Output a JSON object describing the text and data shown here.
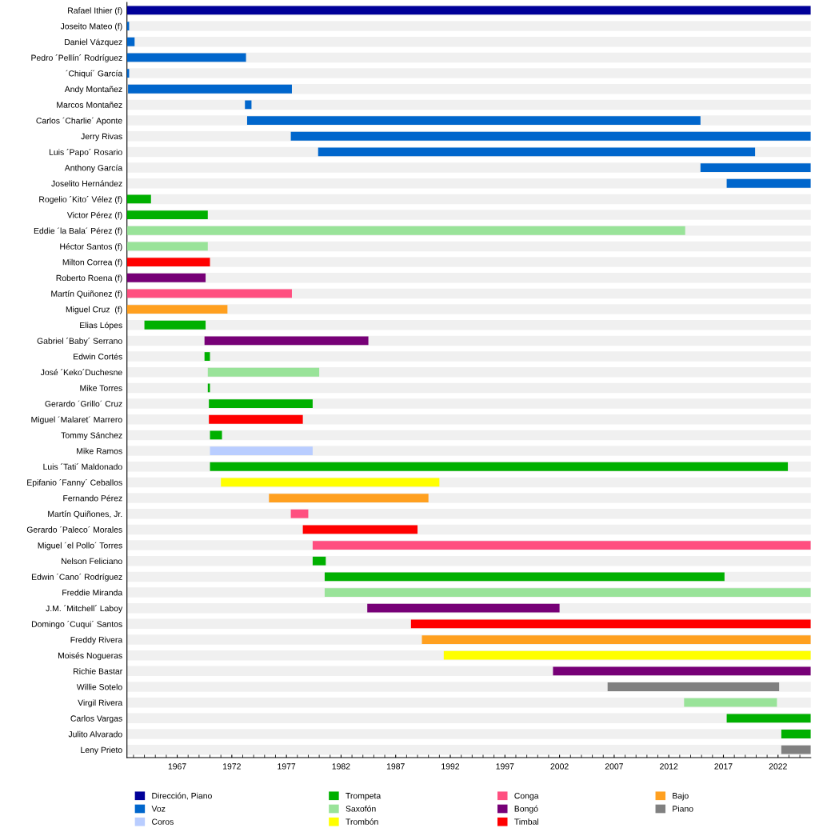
{
  "chart_data": {
    "type": "bar",
    "orientation": "horizontal",
    "legend": "bottom",
    "grid": "y",
    "categories": [
      "Rafael Ithier (f)",
      "Joseito Mateo (f)",
      "Daniel Vázquez",
      "Pedro ´Pellín´ Rodríguez",
      "´Chiquí´ García",
      "Andy Montañez",
      "Marcos Montañez",
      "Carlos ´Charlie´ Aponte",
      "Jerry Rivas",
      "Luis ´Papo´ Rosario",
      "Anthony García",
      "Joselito Hernández",
      "Rogelio ´Kito´ Vélez (f)",
      "Victor Pérez (f)",
      "Eddie ´la Bala´ Pérez (f)",
      "Héctor Santos (f)",
      "Milton Correa (f)",
      "Roberto Roena (f)",
      "Martín Quiñonez (f)",
      "Miguel Cruz  (f)",
      "Elias Lópes",
      "Gabriel ´Baby´ Serrano",
      "Edwin Cortés",
      "José ´Keko´Duchesne",
      "Mike Torres",
      "Gerardo ´Grillo´ Cruz",
      "Miguel ´Malaret´ Marrero",
      "Tommy Sánchez",
      "Mike Ramos",
      "Luis ´Tati´ Maldonado",
      "Epifanio ´Fanny´ Ceballos",
      "Fernando Pérez",
      "Martín Quiñones, Jr.",
      "Gerardo ´Paleco´ Morales",
      "Miguel ´el Pollo´ Torres",
      "Nelson Feliciano",
      "Edwin ´Cano´ Rodríguez",
      "Freddie Miranda",
      "J.M. ´Mitchell´ Laboy",
      "Domingo ´Cuqui´ Santos",
      "Freddy Rivera",
      "Moisés Nogueras",
      "Richie Bastar",
      "Willie Sotelo",
      "Virgil Rivera",
      "Carlos Vargas",
      "Julito Alvarado",
      "Leny Prieto"
    ],
    "xlim": [
      1962.4,
      2025.0
    ],
    "xticks": [
      {
        "value": 1963,
        "label": null
      },
      {
        "value": 1964,
        "label": null
      },
      {
        "value": 1965,
        "label": null
      },
      {
        "value": 1966,
        "label": null
      },
      1967,
      {
        "value": 1968,
        "label": null
      },
      {
        "value": 1969,
        "label": null
      },
      {
        "value": 1970,
        "label": null
      },
      {
        "value": 1971,
        "label": null
      },
      1972,
      {
        "value": 1973,
        "label": null
      },
      {
        "value": 1974,
        "label": null
      },
      {
        "value": 1975,
        "label": null
      },
      {
        "value": 1976,
        "label": null
      },
      1977,
      {
        "value": 1978,
        "label": null
      },
      {
        "value": 1979,
        "label": null
      },
      {
        "value": 1980,
        "label": null
      },
      {
        "value": 1981,
        "label": null
      },
      1982,
      {
        "value": 1983,
        "label": null
      },
      {
        "value": 1984,
        "label": null
      },
      {
        "value": 1985,
        "label": null
      },
      {
        "value": 1986,
        "label": null
      },
      1987,
      {
        "value": 1988,
        "label": null
      },
      {
        "value": 1989,
        "label": null
      },
      {
        "value": 1990,
        "label": null
      },
      {
        "value": 1991,
        "label": null
      },
      1992,
      {
        "value": 1993,
        "label": null
      },
      {
        "value": 1994,
        "label": null
      },
      {
        "value": 1995,
        "label": null
      },
      {
        "value": 1996,
        "label": null
      },
      1997,
      {
        "value": 1998,
        "label": null
      },
      {
        "value": 1999,
        "label": null
      },
      {
        "value": 2000,
        "label": null
      },
      {
        "value": 2001,
        "label": null
      },
      2002,
      {
        "value": 2003,
        "label": null
      },
      {
        "value": 2004,
        "label": null
      },
      {
        "value": 2005,
        "label": null
      },
      {
        "value": 2006,
        "label": null
      },
      2007,
      {
        "value": 2008,
        "label": null
      },
      {
        "value": 2009,
        "label": null
      },
      {
        "value": 2010,
        "label": null
      },
      {
        "value": 2011,
        "label": null
      },
      2012,
      {
        "value": 2013,
        "label": null
      },
      {
        "value": 2014,
        "label": null
      },
      {
        "value": 2015,
        "label": null
      },
      {
        "value": 2016,
        "label": null
      },
      2017,
      {
        "value": 2018,
        "label": null
      },
      {
        "value": 2019,
        "label": null
      },
      {
        "value": 2020,
        "label": null
      },
      {
        "value": 2021,
        "label": null
      },
      2022,
      {
        "value": 2023,
        "label": null
      },
      {
        "value": 2024,
        "label": null
      }
    ],
    "series": [
      {
        "name": "Dirección, Piano",
        "color": "#000099",
        "base": [
          1962.4,
          null,
          null,
          null,
          null,
          null,
          null,
          null,
          null,
          null,
          null,
          null,
          null,
          null,
          null,
          null,
          null,
          null,
          null,
          null,
          null,
          null,
          null,
          null,
          null,
          null,
          null,
          null,
          null,
          null,
          null,
          null,
          null,
          null,
          null,
          null,
          null,
          null,
          null,
          null,
          null,
          null,
          null,
          null,
          null,
          null,
          null,
          null
        ],
        "values": [
          62.6,
          null,
          null,
          null,
          null,
          null,
          null,
          null,
          null,
          null,
          null,
          null,
          null,
          null,
          null,
          null,
          null,
          null,
          null,
          null,
          null,
          null,
          null,
          null,
          null,
          null,
          null,
          null,
          null,
          null,
          null,
          null,
          null,
          null,
          null,
          null,
          null,
          null,
          null,
          null,
          null,
          null,
          null,
          null,
          null,
          null,
          null,
          null
        ]
      },
      {
        "name": "Voz",
        "color": "#0066cc",
        "base": [
          null,
          1962.4,
          1962.4,
          1962.4,
          1962.4,
          1962.5,
          1973.2,
          1973.4,
          1977.4,
          1979.9,
          2014.9,
          2017.3,
          null,
          null,
          null,
          null,
          null,
          null,
          null,
          null,
          null,
          null,
          null,
          null,
          null,
          null,
          null,
          null,
          null,
          null,
          null,
          null,
          null,
          null,
          null,
          null,
          null,
          null,
          null,
          null,
          null,
          null,
          null,
          null,
          null,
          null,
          null,
          null
        ],
        "values": [
          null,
          0.2,
          0.7,
          10.9,
          0.2,
          15.0,
          0.6,
          41.5,
          47.6,
          40.0,
          10.1,
          7.7,
          null,
          null,
          null,
          null,
          null,
          null,
          null,
          null,
          null,
          null,
          null,
          null,
          null,
          null,
          null,
          null,
          null,
          null,
          null,
          null,
          null,
          null,
          null,
          null,
          null,
          null,
          null,
          null,
          null,
          null,
          null,
          null,
          null,
          null,
          null,
          null
        ]
      },
      {
        "name": "Coros",
        "color": "#b9cdff",
        "base": [
          null,
          null,
          null,
          null,
          null,
          null,
          null,
          null,
          null,
          null,
          null,
          null,
          null,
          null,
          null,
          null,
          null,
          null,
          null,
          null,
          null,
          null,
          null,
          null,
          null,
          null,
          null,
          null,
          1970.0,
          null,
          null,
          null,
          null,
          null,
          null,
          null,
          null,
          null,
          null,
          null,
          null,
          null,
          null,
          null,
          null,
          null,
          null,
          null
        ],
        "values": [
          null,
          null,
          null,
          null,
          null,
          null,
          null,
          null,
          null,
          null,
          null,
          null,
          null,
          null,
          null,
          null,
          null,
          null,
          null,
          null,
          null,
          null,
          null,
          null,
          null,
          null,
          null,
          null,
          9.4,
          null,
          null,
          null,
          null,
          null,
          null,
          null,
          null,
          null,
          null,
          null,
          null,
          null,
          null,
          null,
          null,
          null,
          null,
          null
        ]
      },
      {
        "name": "Trompeta",
        "color": "#00b000",
        "base": [
          null,
          null,
          null,
          null,
          null,
          null,
          null,
          null,
          null,
          null,
          null,
          null,
          1962.4,
          1962.4,
          null,
          null,
          null,
          null,
          null,
          null,
          1964.0,
          null,
          1969.5,
          null,
          1969.8,
          1969.9,
          null,
          1970.0,
          null,
          1970.0,
          null,
          null,
          null,
          null,
          null,
          1979.4,
          1980.5,
          null,
          null,
          null,
          null,
          null,
          null,
          null,
          null,
          2017.3,
          2022.3,
          null
        ],
        "values": [
          null,
          null,
          null,
          null,
          null,
          null,
          null,
          null,
          null,
          null,
          null,
          null,
          2.2,
          7.4,
          null,
          null,
          null,
          null,
          null,
          null,
          5.6,
          null,
          0.5,
          null,
          0.2,
          9.5,
          null,
          1.1,
          null,
          52.9,
          null,
          null,
          null,
          null,
          null,
          1.2,
          36.6,
          null,
          null,
          null,
          null,
          null,
          null,
          null,
          null,
          7.7,
          2.7,
          null
        ]
      },
      {
        "name": "Saxofón",
        "color": "#99e399",
        "base": [
          null,
          null,
          null,
          null,
          null,
          null,
          null,
          null,
          null,
          null,
          null,
          null,
          null,
          null,
          1962.4,
          1962.4,
          null,
          null,
          null,
          null,
          null,
          null,
          null,
          1969.8,
          null,
          null,
          null,
          null,
          null,
          null,
          null,
          null,
          null,
          null,
          null,
          null,
          null,
          1980.5,
          null,
          null,
          null,
          null,
          null,
          null,
          2013.4,
          null,
          null,
          null
        ],
        "values": [
          null,
          null,
          null,
          null,
          null,
          null,
          null,
          null,
          null,
          null,
          null,
          null,
          null,
          null,
          51.1,
          7.4,
          null,
          null,
          null,
          null,
          null,
          null,
          null,
          10.2,
          null,
          null,
          null,
          null,
          null,
          null,
          null,
          null,
          null,
          null,
          null,
          null,
          null,
          44.5,
          null,
          null,
          null,
          null,
          null,
          null,
          8.5,
          null,
          null,
          null
        ]
      },
      {
        "name": "Trombón",
        "color": "#ffff00",
        "base": [
          null,
          null,
          null,
          null,
          null,
          null,
          null,
          null,
          null,
          null,
          null,
          null,
          null,
          null,
          null,
          null,
          null,
          null,
          null,
          null,
          null,
          null,
          null,
          null,
          null,
          null,
          null,
          null,
          null,
          null,
          1971.0,
          null,
          null,
          null,
          null,
          null,
          null,
          null,
          null,
          null,
          null,
          1991.4,
          null,
          null,
          null,
          null,
          null,
          null
        ],
        "values": [
          null,
          null,
          null,
          null,
          null,
          null,
          null,
          null,
          null,
          null,
          null,
          null,
          null,
          null,
          null,
          null,
          null,
          null,
          null,
          null,
          null,
          null,
          null,
          null,
          null,
          null,
          null,
          null,
          null,
          null,
          20.0,
          null,
          null,
          null,
          null,
          null,
          null,
          null,
          null,
          null,
          null,
          33.6,
          null,
          null,
          null,
          null,
          null,
          null
        ]
      },
      {
        "name": "Conga",
        "color": "#ff4f80",
        "base": [
          null,
          null,
          null,
          null,
          null,
          null,
          null,
          null,
          null,
          null,
          null,
          null,
          null,
          null,
          null,
          null,
          null,
          null,
          1962.4,
          null,
          null,
          null,
          null,
          null,
          null,
          null,
          null,
          null,
          null,
          null,
          null,
          null,
          1977.4,
          null,
          1979.4,
          null,
          null,
          null,
          null,
          null,
          null,
          null,
          null,
          null,
          null,
          null,
          null,
          null
        ],
        "values": [
          null,
          null,
          null,
          null,
          null,
          null,
          null,
          null,
          null,
          null,
          null,
          null,
          null,
          null,
          null,
          null,
          null,
          null,
          15.1,
          null,
          null,
          null,
          null,
          null,
          null,
          null,
          null,
          null,
          null,
          null,
          null,
          null,
          1.6,
          null,
          45.6,
          null,
          null,
          null,
          null,
          null,
          null,
          null,
          null,
          null,
          null,
          null,
          null,
          null
        ]
      },
      {
        "name": "Bongó",
        "color": "#770077",
        "base": [
          null,
          null,
          null,
          null,
          null,
          null,
          null,
          null,
          null,
          null,
          null,
          null,
          null,
          null,
          null,
          null,
          null,
          1962.4,
          null,
          null,
          null,
          1969.5,
          null,
          null,
          null,
          null,
          null,
          null,
          null,
          null,
          null,
          null,
          null,
          null,
          null,
          null,
          null,
          null,
          1984.4,
          null,
          null,
          null,
          2001.4,
          null,
          null,
          null,
          null,
          null
        ],
        "values": [
          null,
          null,
          null,
          null,
          null,
          null,
          null,
          null,
          null,
          null,
          null,
          null,
          null,
          null,
          null,
          null,
          null,
          7.2,
          null,
          null,
          null,
          15.0,
          null,
          null,
          null,
          null,
          null,
          null,
          null,
          null,
          null,
          null,
          null,
          null,
          null,
          null,
          null,
          null,
          17.6,
          null,
          null,
          null,
          23.6,
          null,
          null,
          null,
          null,
          null
        ]
      },
      {
        "name": "Timbal",
        "color": "#ff0000",
        "base": [
          null,
          null,
          null,
          null,
          null,
          null,
          null,
          null,
          null,
          null,
          null,
          null,
          null,
          null,
          null,
          null,
          1962.4,
          null,
          null,
          null,
          null,
          null,
          null,
          null,
          null,
          null,
          1969.9,
          null,
          null,
          null,
          null,
          null,
          null,
          1978.5,
          null,
          null,
          null,
          null,
          null,
          1988.4,
          null,
          null,
          null,
          null,
          null,
          null,
          null,
          null
        ],
        "values": [
          null,
          null,
          null,
          null,
          null,
          null,
          null,
          null,
          null,
          null,
          null,
          null,
          null,
          null,
          null,
          null,
          7.6,
          null,
          null,
          null,
          null,
          null,
          null,
          null,
          null,
          null,
          8.6,
          null,
          null,
          null,
          null,
          null,
          null,
          10.5,
          null,
          null,
          null,
          null,
          null,
          36.6,
          null,
          null,
          null,
          null,
          null,
          null,
          null,
          null
        ]
      },
      {
        "name": "Bajo",
        "color": "#ffa020",
        "base": [
          null,
          null,
          null,
          null,
          null,
          null,
          null,
          null,
          null,
          null,
          null,
          null,
          null,
          null,
          null,
          null,
          null,
          null,
          null,
          1962.4,
          null,
          null,
          null,
          null,
          null,
          null,
          null,
          null,
          null,
          null,
          null,
          1975.4,
          null,
          null,
          null,
          null,
          null,
          null,
          null,
          null,
          1989.4,
          null,
          null,
          null,
          null,
          null,
          null,
          null
        ],
        "values": [
          null,
          null,
          null,
          null,
          null,
          null,
          null,
          null,
          null,
          null,
          null,
          null,
          null,
          null,
          null,
          null,
          null,
          null,
          null,
          9.2,
          null,
          null,
          null,
          null,
          null,
          null,
          null,
          null,
          null,
          null,
          null,
          14.6,
          null,
          null,
          null,
          null,
          null,
          null,
          null,
          null,
          35.6,
          null,
          null,
          null,
          null,
          null,
          null,
          null
        ]
      },
      {
        "name": "Piano",
        "color": "#808080",
        "base": [
          null,
          null,
          null,
          null,
          null,
          null,
          null,
          null,
          null,
          null,
          null,
          null,
          null,
          null,
          null,
          null,
          null,
          null,
          null,
          null,
          null,
          null,
          null,
          null,
          null,
          null,
          null,
          null,
          null,
          null,
          null,
          null,
          null,
          null,
          null,
          null,
          null,
          null,
          null,
          null,
          null,
          null,
          null,
          2006.4,
          null,
          null,
          null,
          2022.3
        ],
        "values": [
          null,
          null,
          null,
          null,
          null,
          null,
          null,
          null,
          null,
          null,
          null,
          null,
          null,
          null,
          null,
          null,
          null,
          null,
          null,
          null,
          null,
          null,
          null,
          null,
          null,
          null,
          null,
          null,
          null,
          null,
          null,
          null,
          null,
          null,
          null,
          null,
          null,
          null,
          null,
          null,
          null,
          null,
          null,
          15.7,
          null,
          null,
          null,
          2.7
        ]
      }
    ]
  }
}
